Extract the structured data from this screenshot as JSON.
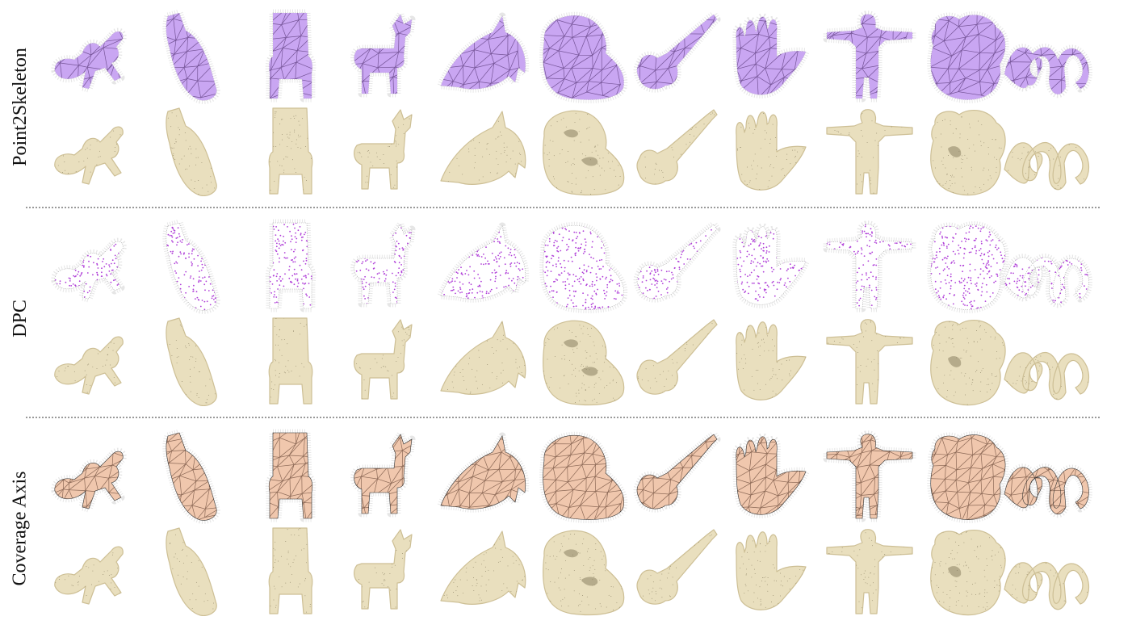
{
  "figure": {
    "rows": [
      {
        "label": "Point2Skeleton",
        "skeleton_style": "purple-mesh"
      },
      {
        "label": "DPC",
        "skeleton_style": "purple-points"
      },
      {
        "label": "Coverage Axis",
        "skeleton_style": "peach-mesh"
      }
    ],
    "shapes": [
      "ant",
      "bottle",
      "chair",
      "deer",
      "dolphin",
      "holed-blob",
      "guitar",
      "hand",
      "human",
      "teddy",
      "spiral"
    ],
    "colors": {
      "purple_fill": "#c9a6f2",
      "purple_edge": "#5a3a7a",
      "purple_dots": "#b040d8",
      "peach_fill": "#f0c7ad",
      "peach_edge": "#6b4a3a",
      "surface": "#e9dfbe",
      "surface_shade": "#cdbf95",
      "halo": "#b8b8b8",
      "separator": "#9a9a9a"
    }
  }
}
